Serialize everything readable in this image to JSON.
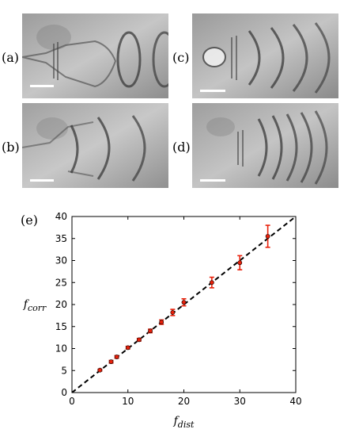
{
  "panels": {
    "a": {
      "label": "(a)",
      "kind": "single"
    },
    "b": {
      "label": "(b)",
      "kind": "double"
    },
    "c": {
      "label": "(c)",
      "kind": "triple"
    },
    "d": {
      "label": "(d)",
      "kind": "many"
    }
  },
  "chart_panel_label": "(e)",
  "chart_data": {
    "type": "scatter",
    "xlabel_main": "f",
    "xlabel_sub": "dist",
    "ylabel_main": "f",
    "ylabel_sub": "corr",
    "xlim": [
      0,
      40
    ],
    "ylim": [
      0,
      40
    ],
    "xticks": [
      0,
      10,
      20,
      30,
      40
    ],
    "yticks": [
      0,
      5,
      10,
      15,
      20,
      25,
      30,
      35,
      40
    ],
    "marker_color": "#e8200a",
    "errorbar_color": "#e8200a",
    "reference_line": {
      "style": "dashed",
      "color": "#000000",
      "from": [
        0,
        0
      ],
      "to": [
        40,
        40
      ]
    },
    "points": [
      {
        "x": 5,
        "y": 5.1,
        "err": 0.2
      },
      {
        "x": 7,
        "y": 7.0,
        "err": 0.3
      },
      {
        "x": 8,
        "y": 8.1,
        "err": 0.3
      },
      {
        "x": 10,
        "y": 10.2,
        "err": 0.3
      },
      {
        "x": 12,
        "y": 12.0,
        "err": 0.3
      },
      {
        "x": 14,
        "y": 14.0,
        "err": 0.4
      },
      {
        "x": 16,
        "y": 16.0,
        "err": 0.5
      },
      {
        "x": 18,
        "y": 18.2,
        "err": 0.7
      },
      {
        "x": 20,
        "y": 20.5,
        "err": 0.8
      },
      {
        "x": 25,
        "y": 25.0,
        "err": 1.2
      },
      {
        "x": 30,
        "y": 29.5,
        "err": 1.6
      },
      {
        "x": 35,
        "y": 35.5,
        "err": 2.5
      }
    ]
  }
}
